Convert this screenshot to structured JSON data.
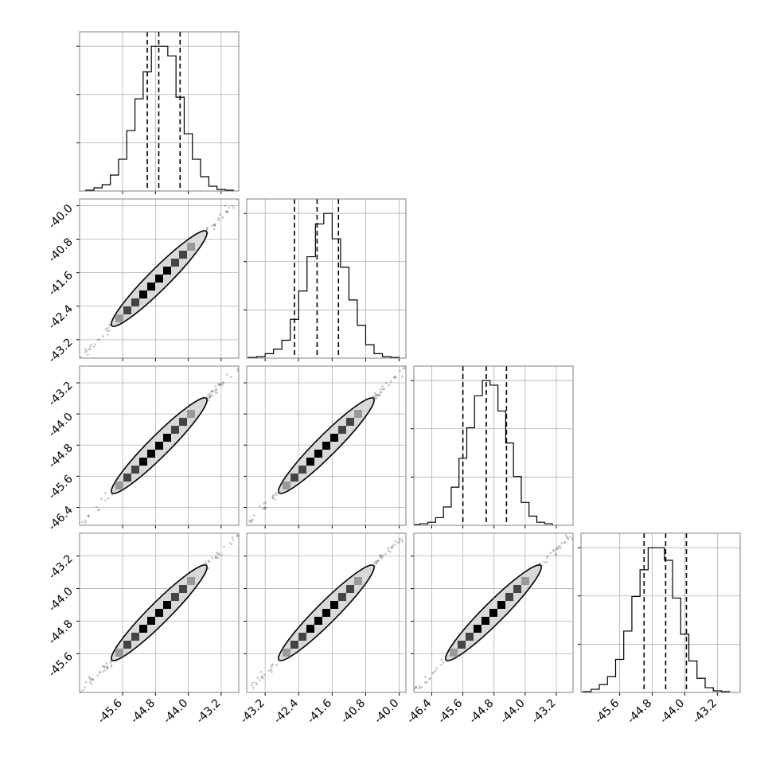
{
  "chart_data": {
    "type": "corner",
    "parameters": 4,
    "grid": true,
    "colors": {
      "line": "#000000",
      "grid": "#b0b0b0",
      "frame": "#808080",
      "scatter": "#555555",
      "contour_fill": "#d9d9d9",
      "bin_high": "#000000",
      "bin_mid": "#444444",
      "bin_low": "#999999"
    },
    "x_ticks": [
      [
        "-45.6",
        "-44.8",
        "-44.0",
        "-43.2"
      ],
      [
        "-43.2",
        "-42.4",
        "-41.6",
        "-40.8",
        "-40.0"
      ],
      [
        "-46.4",
        "-45.6",
        "-44.8",
        "-44.0",
        "-43.2"
      ],
      [
        "-45.6",
        "-44.8",
        "-44.0",
        "-43.2"
      ]
    ],
    "y_ticks": [
      null,
      [
        "-40.0",
        "-40.8",
        "-41.6",
        "-42.4",
        "-43.2"
      ],
      [
        "-43.2",
        "-44.0",
        "-44.8",
        "-45.6",
        "-46.4"
      ],
      [
        "-43.2",
        "-44.0",
        "-44.8",
        "-45.6"
      ]
    ],
    "axis_limits": [
      [
        -46.65,
        -42.77
      ],
      [
        -43.64,
        -39.84
      ],
      [
        -46.86,
        -42.77
      ],
      [
        -46.55,
        -42.64
      ]
    ],
    "y_tick_values": [
      [],
      [
        -40.0,
        -40.8,
        -41.6,
        -42.4,
        -43.2
      ],
      [
        -43.2,
        -44.0,
        -44.8,
        -45.6,
        -46.4
      ],
      [
        -43.2,
        -44.0,
        -44.8,
        -45.6
      ]
    ],
    "x_tick_values": [
      [
        -45.6,
        -44.8,
        -44.0,
        -43.2
      ],
      [
        -43.2,
        -42.4,
        -41.6,
        -40.8,
        -40.0
      ],
      [
        -46.4,
        -45.6,
        -44.8,
        -44.0,
        -43.2
      ],
      [
        -45.6,
        -44.8,
        -44.0,
        -43.2
      ]
    ],
    "quantiles": [
      [
        -45.0,
        -44.72,
        -44.2
      ],
      [
        -42.5,
        -41.96,
        -41.45
      ],
      [
        -45.6,
        -45.0,
        -44.48
      ],
      [
        -45.0,
        -44.47,
        -43.96
      ]
    ],
    "histograms": [
      {
        "bins": [
          -46.5,
          -46.3,
          -46.1,
          -45.9,
          -45.7,
          -45.5,
          -45.3,
          -45.1,
          -44.9,
          -44.7,
          -44.5,
          -44.3,
          -44.1,
          -43.9,
          -43.7,
          -43.5,
          -43.3,
          -43.1,
          -42.9
        ],
        "counts": [
          0.5,
          2,
          4,
          10,
          20,
          38,
          58,
          75,
          91,
          91,
          85,
          59,
          36,
          20,
          9,
          3,
          1,
          0.5
        ]
      },
      {
        "bins": [
          -43.6,
          -43.4,
          -43.2,
          -43.0,
          -42.8,
          -42.6,
          -42.4,
          -42.2,
          -42.0,
          -41.8,
          -41.6,
          -41.4,
          -41.2,
          -41.0,
          -40.8,
          -40.6,
          -40.4,
          -40.2,
          -40.0
        ],
        "counts": [
          0.5,
          1,
          3,
          6,
          12,
          26,
          45,
          68,
          90,
          97,
          80,
          61,
          39,
          22,
          9,
          3,
          1,
          0.5
        ]
      },
      {
        "bins": [
          -46.9,
          -46.7,
          -46.5,
          -46.3,
          -46.1,
          -45.9,
          -45.7,
          -45.5,
          -45.3,
          -45.1,
          -44.9,
          -44.7,
          -44.5,
          -44.3,
          -44.1,
          -43.9,
          -43.7,
          -43.5,
          -43.3
        ],
        "counts": [
          0.5,
          1,
          2,
          5,
          12,
          25,
          44,
          64,
          85,
          95,
          92,
          75,
          54,
          32,
          15,
          6,
          2,
          1
        ]
      },
      {
        "bins": [
          -46.5,
          -46.3,
          -46.1,
          -45.9,
          -45.7,
          -45.5,
          -45.3,
          -45.1,
          -44.9,
          -44.7,
          -44.5,
          -44.3,
          -44.1,
          -43.9,
          -43.7,
          -43.5,
          -43.3,
          -43.1,
          -42.9
        ],
        "counts": [
          0.5,
          2,
          5,
          10,
          21,
          39,
          61,
          78,
          92,
          92,
          84,
          60,
          37,
          20,
          9,
          3,
          1,
          0.5
        ]
      }
    ]
  }
}
